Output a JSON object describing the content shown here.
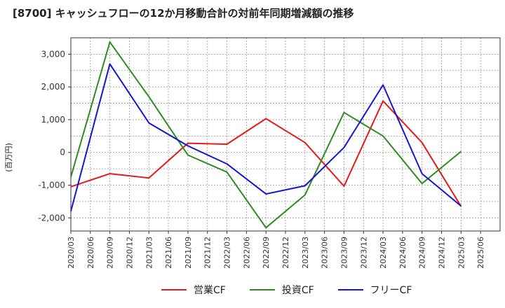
{
  "chart_data": {
    "type": "line",
    "title": "[8700]  キャッシュフローの12か月移動合計の対前年同期増減額の推移",
    "ylabel": "(百万円)",
    "xlabel": "",
    "ylim": [
      -2400,
      3500
    ],
    "yticks": [
      -2000,
      -1000,
      0,
      1000,
      2000,
      3000
    ],
    "ytick_labels": [
      "-2,000",
      "-1,000",
      "0",
      "1,000",
      "2,000",
      "3,000"
    ],
    "x_labels": [
      "2020/03",
      "2020/06",
      "2020/09",
      "2020/12",
      "2021/03",
      "2021/06",
      "2021/09",
      "2021/12",
      "2022/03",
      "2022/06",
      "2022/09",
      "2022/12",
      "2023/03",
      "2023/06",
      "2023/09",
      "2023/12",
      "2024/03",
      "2024/06",
      "2024/09",
      "2024/12",
      "2025/03",
      "2025/06"
    ],
    "series": [
      {
        "name": "営業CF",
        "color": "#e41a1c",
        "points": [
          [
            "2020/03",
            -1050
          ],
          [
            "2020/09",
            -650
          ],
          [
            "2021/03",
            -780
          ],
          [
            "2021/09",
            280
          ],
          [
            "2022/03",
            250
          ],
          [
            "2022/09",
            1030
          ],
          [
            "2023/03",
            300
          ],
          [
            "2023/09",
            -1030
          ],
          [
            "2024/03",
            1570
          ],
          [
            "2024/09",
            300
          ],
          [
            "2025/03",
            -1650
          ]
        ]
      },
      {
        "name": "投資CF",
        "color": "#2e8b22",
        "points": [
          [
            "2020/03",
            -750
          ],
          [
            "2020/09",
            3370
          ],
          [
            "2021/03",
            1700
          ],
          [
            "2021/09",
            -80
          ],
          [
            "2022/03",
            -600
          ],
          [
            "2022/09",
            -2300
          ],
          [
            "2023/03",
            -1300
          ],
          [
            "2023/09",
            1220
          ],
          [
            "2024/03",
            500
          ],
          [
            "2024/09",
            -950
          ],
          [
            "2025/03",
            30
          ]
        ]
      },
      {
        "name": "フリーCF",
        "color": "#1515d4",
        "points": [
          [
            "2020/03",
            -1800
          ],
          [
            "2020/09",
            2700
          ],
          [
            "2021/03",
            900
          ],
          [
            "2021/09",
            200
          ],
          [
            "2022/03",
            -350
          ],
          [
            "2022/09",
            -1270
          ],
          [
            "2023/03",
            -1020
          ],
          [
            "2023/09",
            150
          ],
          [
            "2024/03",
            2060
          ],
          [
            "2024/09",
            -650
          ],
          [
            "2025/03",
            -1640
          ]
        ]
      }
    ],
    "grid": true,
    "legend_position": "bottom"
  }
}
